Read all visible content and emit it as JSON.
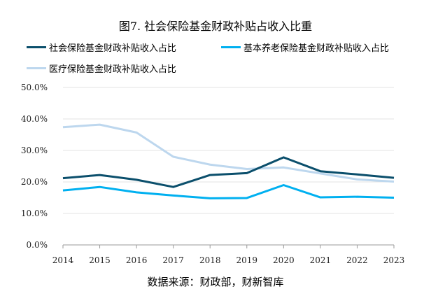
{
  "chart_data": {
    "type": "line",
    "title": "图7. 社会保险基金财政补贴占收入比重",
    "x": [
      "2014",
      "2015",
      "2016",
      "2017",
      "2018",
      "2019",
      "2020",
      "2021",
      "2022",
      "2023"
    ],
    "series": [
      {
        "name": "社会保险基金财政补贴收入占比",
        "color": "#0b4f6c",
        "values": [
          21.2,
          22.2,
          20.7,
          18.4,
          22.2,
          22.8,
          27.8,
          23.4,
          22.4,
          21.3
        ]
      },
      {
        "name": "基本养老保险基金财政补贴收入占比",
        "color": "#00b0f0",
        "values": [
          17.3,
          18.4,
          16.7,
          15.7,
          14.8,
          14.9,
          19.0,
          15.1,
          15.3,
          15.0
        ]
      },
      {
        "name": "医疗保险基金财政补贴收入占比",
        "color": "#bdd7ee",
        "values": [
          37.4,
          38.2,
          35.7,
          28.0,
          25.5,
          24.1,
          24.6,
          22.7,
          20.8,
          20.1
        ]
      }
    ],
    "yticks": [
      "0.0%",
      "10.0%",
      "20.0%",
      "30.0%",
      "40.0%",
      "50.0%"
    ],
    "ylim": [
      0,
      50
    ],
    "grid": true,
    "legend": "top",
    "source": "数据来源：财政部，财新智库"
  }
}
